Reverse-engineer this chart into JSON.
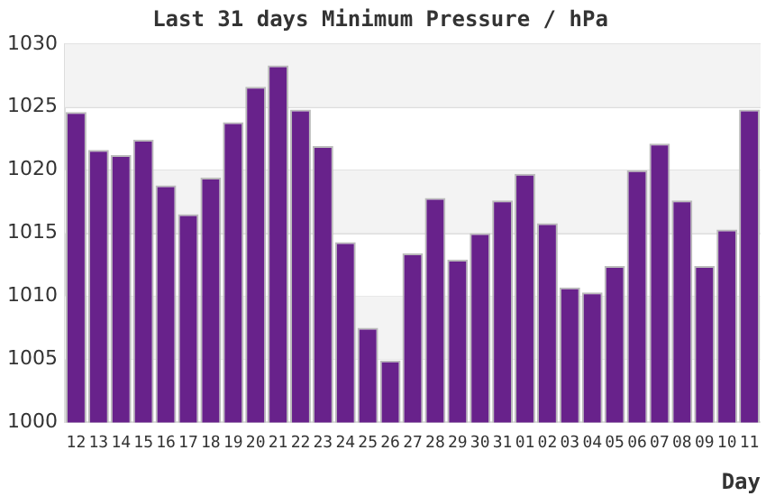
{
  "chart_data": {
    "type": "bar",
    "title": "Last 31 days Minimum Pressure / hPa",
    "xlabel": "Day",
    "categories": [
      "12",
      "13",
      "14",
      "15",
      "16",
      "17",
      "18",
      "19",
      "20",
      "21",
      "22",
      "23",
      "24",
      "25",
      "26",
      "27",
      "28",
      "29",
      "30",
      "31",
      "01",
      "02",
      "03",
      "04",
      "05",
      "06",
      "07",
      "08",
      "09",
      "10",
      "11"
    ],
    "values": [
      1024.6,
      1021.6,
      1021.2,
      1022.4,
      1018.8,
      1016.5,
      1019.4,
      1023.8,
      1026.6,
      1028.3,
      1024.8,
      1021.9,
      1014.3,
      1007.5,
      1004.9,
      1013.4,
      1017.8,
      1012.9,
      1015.0,
      1017.6,
      1019.7,
      1015.8,
      1010.7,
      1010.3,
      1012.4,
      1020.0,
      1022.1,
      1017.6,
      1012.4,
      1015.3,
      1024.8
    ],
    "color": "#68228b",
    "ylim": [
      1000,
      1030
    ],
    "yticks": [
      1000,
      1005,
      1010,
      1015,
      1020,
      1025,
      1030
    ],
    "grid": "y",
    "legend": false
  }
}
